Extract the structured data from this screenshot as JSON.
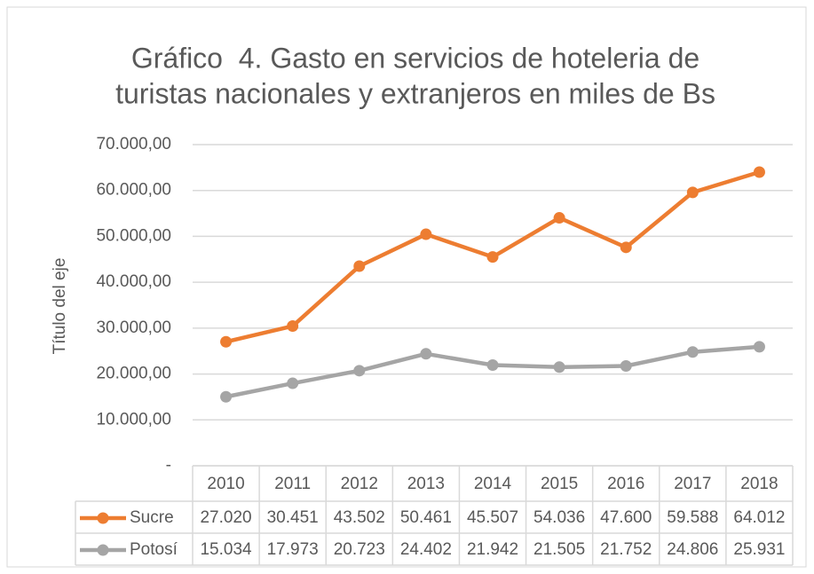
{
  "chart_data": {
    "type": "line",
    "title": [
      "Gráfico  4. Gasto en servicios de hoteleria de",
      "turistas nacionales y extranjeros en miles de Bs"
    ],
    "y_label": "Título del eje",
    "categories": [
      "2010",
      "2011",
      "2012",
      "2013",
      "2014",
      "2015",
      "2016",
      "2017",
      "2018"
    ],
    "series": [
      {
        "name": "Sucre",
        "color": "#ED7D31",
        "values": [
          27020,
          30451,
          43502,
          50461,
          45507,
          54036,
          47600,
          59588,
          64012
        ],
        "value_labels": [
          "27.020",
          "30.451",
          "43.502",
          "50.461",
          "45.507",
          "54.036",
          "47.600",
          "59.588",
          "64.012"
        ]
      },
      {
        "name": "Potosí",
        "color": "#A5A5A5",
        "values": [
          15034,
          17973,
          20723,
          24402,
          21942,
          21505,
          21752,
          24806,
          25931
        ],
        "value_labels": [
          "15.034",
          "17.973",
          "20.723",
          "24.402",
          "21.942",
          "21.505",
          "21.752",
          "24.806",
          "25.931"
        ]
      }
    ],
    "ylim": [
      0,
      70000
    ],
    "yticks": [
      {
        "value": 0,
        "label": "-"
      },
      {
        "value": 10000,
        "label": "10.000,00"
      },
      {
        "value": 20000,
        "label": "20.000,00"
      },
      {
        "value": 30000,
        "label": "30.000,00"
      },
      {
        "value": 40000,
        "label": "40.000,00"
      },
      {
        "value": 50000,
        "label": "50.000,00"
      },
      {
        "value": 60000,
        "label": "60.000,00"
      },
      {
        "value": 70000,
        "label": "70.000,00"
      }
    ],
    "grid": true
  }
}
